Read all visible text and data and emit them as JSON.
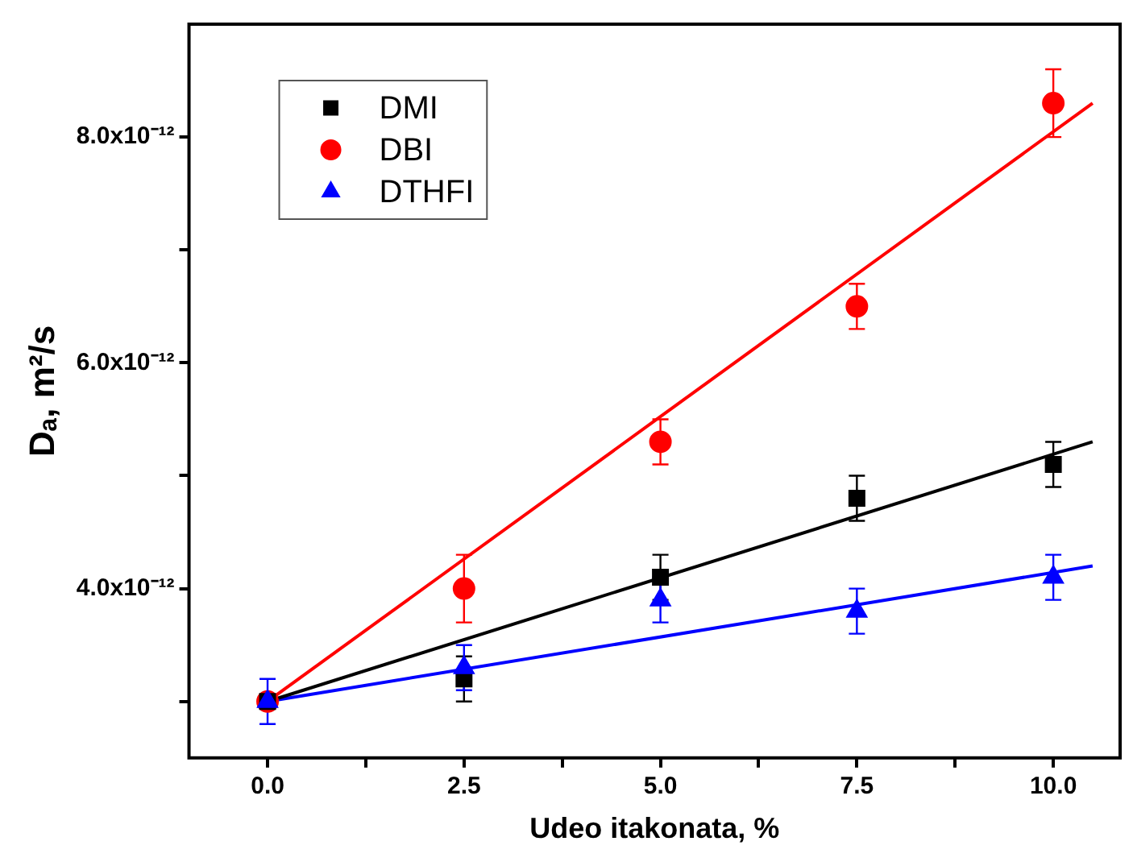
{
  "chart_data": {
    "type": "scatter",
    "xlabel": "Udeo itakonata, %",
    "ylabel": "Dₐ, m²/s",
    "xlim": [
      -1,
      10.85
    ],
    "xticks": [
      {
        "value": 0,
        "label": "0.0"
      },
      {
        "value": 1.25,
        "label": null
      },
      {
        "value": 2.5,
        "label": "2.5"
      },
      {
        "value": 3.75,
        "label": null
      },
      {
        "value": 5,
        "label": "5.0"
      },
      {
        "value": 6.25,
        "label": null
      },
      {
        "value": 7.5,
        "label": "7.5"
      },
      {
        "value": 8.75,
        "label": null
      },
      {
        "value": 10,
        "label": "10.0"
      }
    ],
    "ylim": [
      2.5e-12,
      9e-12
    ],
    "yticks": [
      {
        "value": 3e-12,
        "label": null
      },
      {
        "value": 4e-12,
        "label": "4.0x10⁻¹²"
      },
      {
        "value": 5e-12,
        "label": null
      },
      {
        "value": 6e-12,
        "label": "6.0x10⁻¹²"
      },
      {
        "value": 7e-12,
        "label": null
      },
      {
        "value": 8e-12,
        "label": "8.0x10⁻¹²"
      }
    ],
    "grid": false,
    "legend": "top left",
    "series": [
      {
        "name": "DMI",
        "color": "#000000",
        "marker": "square",
        "x": [
          0,
          2.5,
          5,
          7.5,
          10
        ],
        "values": [
          3e-12,
          3.2e-12,
          4.1e-12,
          4.8e-12,
          5.1e-12
        ],
        "errors": [
          null,
          2e-13,
          2e-13,
          2e-13,
          2e-13
        ]
      },
      {
        "name": "DBI",
        "color": "#ff0000",
        "marker": "circle",
        "x": [
          0,
          2.5,
          5,
          7.5,
          10
        ],
        "values": [
          3e-12,
          4e-12,
          5.3e-12,
          6.5e-12,
          8.3e-12
        ],
        "errors": [
          null,
          3e-13,
          2e-13,
          2e-13,
          3e-13
        ]
      },
      {
        "name": "DTHFI",
        "color": "#0000ff",
        "marker": "triangle",
        "x": [
          0,
          2.5,
          5,
          7.5,
          10
        ],
        "values": [
          3e-12,
          3.3e-12,
          3.9e-12,
          3.8e-12,
          4.1e-12
        ],
        "errors": [
          2e-13,
          2e-13,
          2e-13,
          2e-13,
          2e-13
        ]
      },
      {
        "type": "line",
        "color": "#000000",
        "marker": "none",
        "x": [
          0,
          10.5
        ],
        "values": [
          3e-12,
          5.3e-12
        ]
      },
      {
        "type": "line",
        "color": "#ff0000",
        "marker": "none",
        "x": [
          0,
          10.5
        ],
        "values": [
          3e-12,
          8.3e-12
        ]
      },
      {
        "type": "line",
        "color": "#0000ff",
        "marker": "none",
        "x": [
          0,
          10.5
        ],
        "values": [
          3e-12,
          4.2e-12
        ]
      }
    ]
  }
}
